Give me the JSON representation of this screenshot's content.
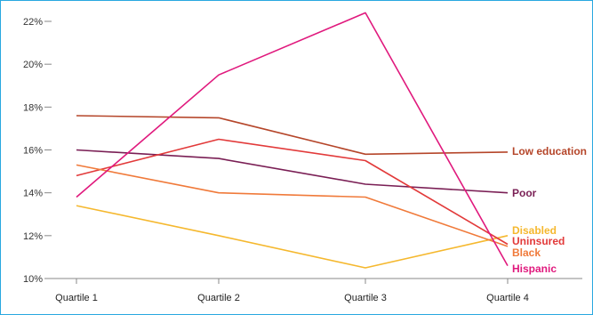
{
  "chart_data": {
    "type": "line",
    "categories": [
      "Quartile 1",
      "Quartile 2",
      "Quartile 3",
      "Quartile 4"
    ],
    "ylim": [
      10,
      22
    ],
    "yticks": [
      10,
      12,
      14,
      16,
      18,
      20,
      22
    ],
    "ytick_labels": [
      "10%",
      "12%",
      "14%",
      "16%",
      "18%",
      "20%",
      "22%"
    ],
    "grid": false,
    "legend": "inline labels at right end of lines",
    "series": [
      {
        "name": "Low education",
        "color": "#b5462a",
        "values": [
          17.6,
          17.5,
          15.8,
          15.9
        ]
      },
      {
        "name": "Poor",
        "color": "#7a1f55",
        "values": [
          16.0,
          15.6,
          14.4,
          14.0
        ]
      },
      {
        "name": "Disabled",
        "color": "#f5b82e",
        "values": [
          13.4,
          12.0,
          10.5,
          12.0
        ]
      },
      {
        "name": "Uninsured",
        "color": "#e23a3a",
        "values": [
          14.8,
          16.5,
          15.5,
          11.6
        ]
      },
      {
        "name": "Black",
        "color": "#f07a3a",
        "values": [
          15.3,
          14.0,
          13.8,
          11.5
        ]
      },
      {
        "name": "Hispanic",
        "color": "#e0197d",
        "values": [
          13.8,
          19.5,
          22.4,
          10.6
        ]
      }
    ]
  }
}
